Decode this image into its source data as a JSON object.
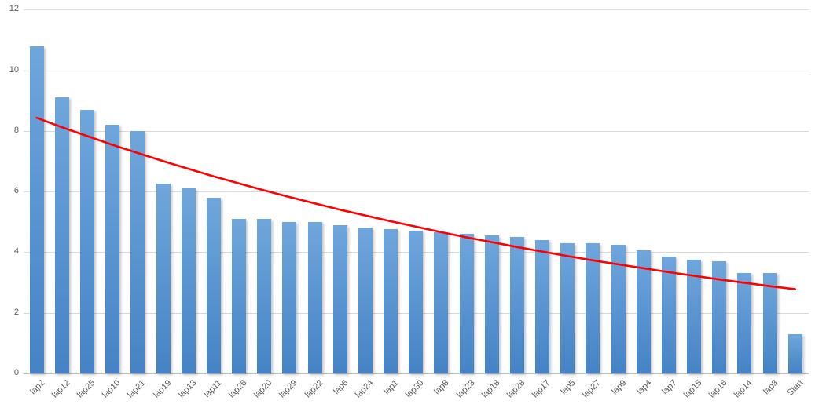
{
  "chart_data": {
    "type": "bar",
    "title": "",
    "xlabel": "",
    "ylabel": "",
    "categories": [
      "lap2",
      "lap12",
      "lap25",
      "lap10",
      "lap21",
      "lap19",
      "lap13",
      "lap11",
      "lap26",
      "lap20",
      "lap29",
      "lap22",
      "lap6",
      "lap24",
      "lap1",
      "lap30",
      "lap8",
      "lap23",
      "lap18",
      "lap28",
      "lap17",
      "lap5",
      "lap27",
      "lap9",
      "lap4",
      "lap7",
      "lap15",
      "lap16",
      "lap14",
      "lap3",
      "Start"
    ],
    "values": [
      10.8,
      9.1,
      8.7,
      8.2,
      8.0,
      6.25,
      6.1,
      5.8,
      5.1,
      5.1,
      5.0,
      5.0,
      4.9,
      4.8,
      4.75,
      4.7,
      4.65,
      4.6,
      4.55,
      4.5,
      4.4,
      4.3,
      4.3,
      4.25,
      4.05,
      3.85,
      3.75,
      3.7,
      3.3,
      3.3,
      1.3
    ],
    "ylim": [
      0,
      12
    ],
    "yticks": [
      0,
      2,
      4,
      6,
      8,
      10,
      12
    ],
    "grid": true,
    "legend": false,
    "bar_color_top": "#6FA6DC",
    "bar_color_bottom": "#4583C6",
    "gridline_color": "#D9D9D9",
    "axis_line_color": "#BFBFBF",
    "tick_label_color": "#595959",
    "trendline": {
      "type": "exponential",
      "color": "#FF0000",
      "values": [
        8.43,
        8.12,
        7.83,
        7.54,
        7.27,
        7.0,
        6.75,
        6.5,
        6.27,
        6.04,
        5.82,
        5.61,
        5.4,
        5.21,
        5.02,
        4.84,
        4.66,
        4.49,
        4.33,
        4.17,
        4.02,
        3.87,
        3.73,
        3.6,
        3.47,
        3.34,
        3.22,
        3.1,
        2.99,
        2.88,
        2.78
      ]
    }
  }
}
